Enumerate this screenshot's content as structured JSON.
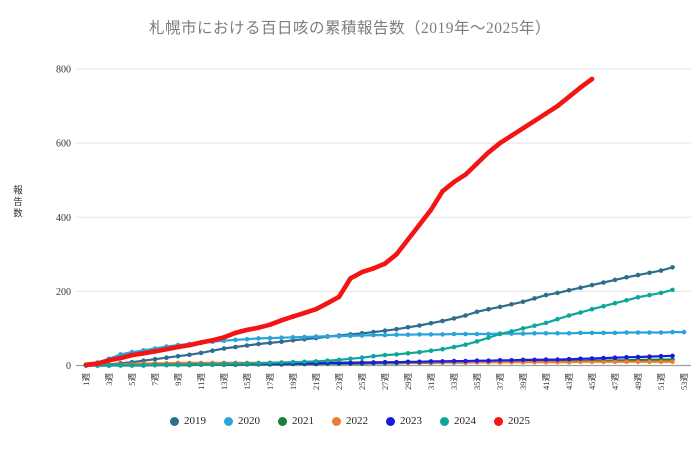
{
  "chart_data": {
    "type": "line",
    "title": "札幌市における百日咳の累積報告数（2019年～2025年）",
    "xlabel": "",
    "ylabel": "報告数",
    "x_unit": "週",
    "x_start_week": 1,
    "x_end_week": 53,
    "x_ticks": [
      "1週",
      "3週",
      "5週",
      "7週",
      "9週",
      "11週",
      "13週",
      "15週",
      "17週",
      "19週",
      "21週",
      "23週",
      "25週",
      "27週",
      "29週",
      "31週",
      "33週",
      "35週",
      "37週",
      "39週",
      "41週",
      "43週",
      "45週",
      "47週",
      "49週",
      "51週",
      "53週"
    ],
    "ylim": [
      0,
      800
    ],
    "y_ticks": [
      0,
      200,
      400,
      600,
      800
    ],
    "grid": "horizontal",
    "legend_position": "bottom",
    "axis_color": "#9e9e9e",
    "grid_color": "#e3e3e3",
    "tick_text_color": "#333333",
    "series": [
      {
        "name": "2019",
        "color": "#2f6d8e",
        "line_width": 2.2,
        "marker_radius": 2.3,
        "values": [
          0,
          1,
          3,
          6,
          9,
          13,
          17,
          21,
          25,
          29,
          34,
          40,
          46,
          50,
          54,
          58,
          61,
          64,
          68,
          71,
          74,
          78,
          81,
          84,
          87,
          90,
          94,
          98,
          103,
          108,
          114,
          120,
          127,
          135,
          145,
          152,
          158,
          165,
          172,
          181,
          190,
          196,
          203,
          210,
          217,
          224,
          231,
          238,
          244,
          250,
          256,
          265
        ]
      },
      {
        "name": "2020",
        "color": "#2aa5dc",
        "line_width": 2.2,
        "marker_radius": 2.3,
        "values": [
          2,
          8,
          18,
          30,
          36,
          41,
          46,
          51,
          55,
          58,
          61,
          64,
          67,
          69,
          71,
          73,
          74,
          75,
          76,
          77,
          78,
          79,
          79,
          80,
          81,
          82,
          82,
          83,
          83,
          84,
          84,
          84,
          85,
          85,
          85,
          85,
          86,
          86,
          86,
          87,
          87,
          87,
          87,
          88,
          88,
          88,
          88,
          89,
          89,
          89,
          89,
          90,
          90
        ]
      },
      {
        "name": "2021",
        "color": "#17803a",
        "line_width": 2.2,
        "marker_radius": 2.3,
        "values": [
          0,
          0,
          0,
          0,
          0,
          0,
          1,
          1,
          1,
          1,
          2,
          2,
          2,
          2,
          3,
          3,
          3,
          3,
          4,
          4,
          4,
          5,
          5,
          5,
          5,
          6,
          6,
          6,
          7,
          7,
          7,
          8,
          8,
          8,
          9,
          9,
          9,
          10,
          10,
          10,
          11,
          11,
          12,
          12,
          13,
          13,
          14,
          14,
          15,
          15,
          16,
          16
        ]
      },
      {
        "name": "2022",
        "color": "#ed7d31",
        "line_width": 2.2,
        "marker_radius": 2.3,
        "values": [
          0,
          1,
          2,
          3,
          4,
          5,
          6,
          6,
          7,
          7,
          7,
          7,
          7,
          7,
          7,
          7,
          7,
          7,
          8,
          8,
          8,
          8,
          8,
          8,
          8,
          8,
          8,
          8,
          8,
          8,
          8,
          8,
          9,
          9,
          9,
          9,
          9,
          9,
          9,
          9,
          9,
          9,
          9,
          10,
          10,
          10,
          10,
          10,
          10,
          10,
          10,
          10
        ]
      },
      {
        "name": "2023",
        "color": "#1b1be0",
        "line_width": 2.2,
        "marker_radius": 2.3,
        "values": [
          0,
          0,
          0,
          1,
          1,
          1,
          2,
          2,
          2,
          3,
          3,
          3,
          4,
          4,
          4,
          5,
          5,
          5,
          6,
          6,
          6,
          7,
          7,
          7,
          8,
          8,
          9,
          9,
          10,
          10,
          11,
          11,
          12,
          12,
          13,
          13,
          14,
          14,
          15,
          15,
          16,
          16,
          17,
          18,
          19,
          20,
          21,
          22,
          23,
          24,
          25,
          26
        ]
      },
      {
        "name": "2024",
        "color": "#0da69a",
        "line_width": 2.2,
        "marker_radius": 2.3,
        "values": [
          0,
          0,
          0,
          1,
          1,
          1,
          2,
          2,
          2,
          3,
          3,
          3,
          4,
          5,
          5,
          6,
          7,
          8,
          9,
          10,
          11,
          13,
          15,
          18,
          21,
          25,
          28,
          30,
          33,
          36,
          40,
          44,
          50,
          56,
          65,
          75,
          85,
          92,
          100,
          107,
          115,
          125,
          135,
          143,
          152,
          160,
          168,
          176,
          184,
          190,
          196,
          204
        ]
      },
      {
        "name": "2025",
        "color": "#f41414",
        "line_width": 4.6,
        "marker_radius": 2.3,
        "values": [
          2,
          5,
          14,
          20,
          28,
          33,
          38,
          44,
          50,
          55,
          62,
          68,
          76,
          88,
          96,
          102,
          110,
          122,
          132,
          142,
          152,
          168,
          185,
          235,
          252,
          262,
          275,
          300,
          340,
          380,
          420,
          470,
          495,
          515,
          545,
          575,
          600,
          620,
          640,
          660,
          680,
          700,
          725,
          750,
          773
        ]
      }
    ]
  }
}
